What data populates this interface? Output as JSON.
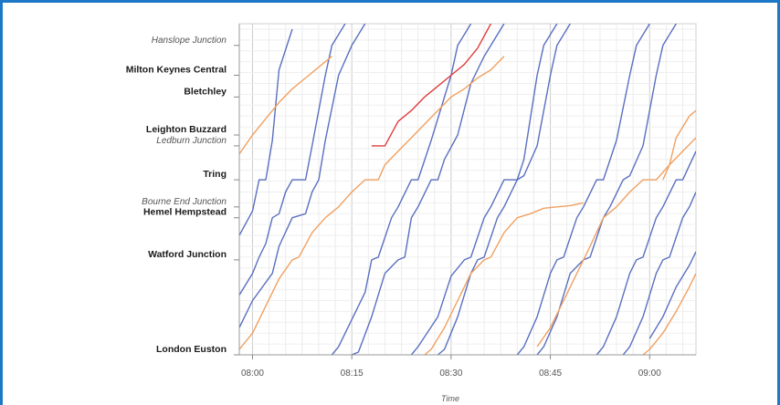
{
  "chart_data": {
    "type": "line",
    "title": "",
    "xlabel": "Time",
    "ylabel": "",
    "x_ticks": [
      "08:00",
      "08:15",
      "08:30",
      "08:45",
      "09:00"
    ],
    "xlim_minutes": [
      -2,
      67
    ],
    "stations": [
      {
        "name": "London Euston",
        "pos": 0,
        "style": "bold"
      },
      {
        "name": "Watford Junction",
        "pos": 0.35,
        "style": "bold"
      },
      {
        "name": "Hemel Hempstead",
        "pos": 0.505,
        "style": "bold"
      },
      {
        "name": "Bourne End Junction",
        "pos": 0.545,
        "style": "italic"
      },
      {
        "name": "Tring",
        "pos": 0.645,
        "style": "bold"
      },
      {
        "name": "Ledburn Junction",
        "pos": 0.77,
        "style": "italic"
      },
      {
        "name": "Leighton Buzzard",
        "pos": 0.81,
        "style": "bold"
      },
      {
        "name": "Bletchley",
        "pos": 0.95,
        "style": "bold"
      },
      {
        "name": "Milton Keynes Central",
        "pos": 1.03,
        "style": "bold"
      },
      {
        "name": "Hanslope Junction",
        "pos": 1.14,
        "style": "italic"
      }
    ],
    "series": [
      {
        "color": "#5a6fc0",
        "points": [
          [
            -2,
            0.44
          ],
          [
            0,
            0.53
          ],
          [
            1,
            0.645
          ],
          [
            2,
            0.645
          ],
          [
            3,
            0.79
          ],
          [
            4,
            1.05
          ],
          [
            6,
            1.2
          ]
        ]
      },
      {
        "color": "#5a6fc0",
        "points": [
          [
            -2,
            0.22
          ],
          [
            0,
            0.3
          ],
          [
            1,
            0.36
          ],
          [
            2,
            0.41
          ],
          [
            3,
            0.505
          ],
          [
            4,
            0.52
          ],
          [
            5,
            0.6
          ],
          [
            6,
            0.645
          ],
          [
            8,
            0.645
          ],
          [
            9,
            0.77
          ],
          [
            11,
            1.03
          ],
          [
            12,
            1.14
          ],
          [
            14,
            1.22
          ]
        ]
      },
      {
        "color": "#5a6fc0",
        "points": [
          [
            -2,
            0.1
          ],
          [
            0,
            0.2
          ],
          [
            3,
            0.3
          ],
          [
            4,
            0.4
          ],
          [
            6,
            0.505
          ],
          [
            8,
            0.52
          ],
          [
            9,
            0.6
          ],
          [
            10,
            0.645
          ],
          [
            11,
            0.79
          ],
          [
            13,
            1.03
          ],
          [
            15,
            1.14
          ],
          [
            17,
            1.22
          ]
        ]
      },
      {
        "color": "#5a6fc0",
        "points": [
          [
            12,
            0
          ],
          [
            13,
            0.03
          ],
          [
            15,
            0.13
          ],
          [
            17,
            0.23
          ],
          [
            18,
            0.35
          ],
          [
            19,
            0.36
          ],
          [
            21,
            0.505
          ],
          [
            22,
            0.545
          ],
          [
            24,
            0.645
          ],
          [
            25,
            0.645
          ],
          [
            27,
            0.79
          ],
          [
            30,
            1.03
          ],
          [
            31,
            1.14
          ],
          [
            33,
            1.22
          ]
        ]
      },
      {
        "color": "#5a6fc0",
        "points": [
          [
            15,
            0
          ],
          [
            16,
            0.01
          ],
          [
            18,
            0.14
          ],
          [
            20,
            0.3
          ],
          [
            22,
            0.35
          ],
          [
            23,
            0.36
          ],
          [
            24,
            0.505
          ],
          [
            25,
            0.545
          ],
          [
            27,
            0.645
          ],
          [
            28,
            0.645
          ],
          [
            29,
            0.72
          ],
          [
            31,
            0.81
          ],
          [
            33,
            1.0
          ],
          [
            35,
            1.1
          ],
          [
            36,
            1.14
          ],
          [
            38,
            1.22
          ]
        ]
      },
      {
        "color": "#5a6fc0",
        "points": [
          [
            24,
            0
          ],
          [
            25,
            0.03
          ],
          [
            28,
            0.14
          ],
          [
            30,
            0.29
          ],
          [
            32,
            0.35
          ],
          [
            33,
            0.36
          ],
          [
            35,
            0.505
          ],
          [
            36,
            0.545
          ],
          [
            38,
            0.645
          ],
          [
            40,
            0.645
          ],
          [
            41,
            0.72
          ],
          [
            43,
            1.03
          ],
          [
            44,
            1.14
          ],
          [
            46,
            1.22
          ]
        ]
      },
      {
        "color": "#5a6fc0",
        "points": [
          [
            28,
            0
          ],
          [
            29,
            0.02
          ],
          [
            31,
            0.14
          ],
          [
            33,
            0.3
          ],
          [
            34,
            0.35
          ],
          [
            35,
            0.36
          ],
          [
            37,
            0.505
          ],
          [
            38,
            0.545
          ],
          [
            40,
            0.645
          ],
          [
            41,
            0.66
          ],
          [
            43,
            0.77
          ],
          [
            45,
            1.03
          ],
          [
            46,
            1.14
          ],
          [
            48,
            1.22
          ]
        ]
      },
      {
        "color": "#5a6fc0",
        "points": [
          [
            40,
            0
          ],
          [
            41,
            0.03
          ],
          [
            43,
            0.14
          ],
          [
            45,
            0.3
          ],
          [
            46,
            0.35
          ],
          [
            47,
            0.36
          ],
          [
            49,
            0.505
          ],
          [
            50,
            0.545
          ],
          [
            52,
            0.645
          ],
          [
            53,
            0.645
          ],
          [
            55,
            0.79
          ],
          [
            57,
            1.03
          ],
          [
            58,
            1.14
          ],
          [
            60,
            1.22
          ]
        ]
      },
      {
        "color": "#5a6fc0",
        "points": [
          [
            43,
            0
          ],
          [
            44,
            0.03
          ],
          [
            46,
            0.14
          ],
          [
            48,
            0.3
          ],
          [
            50,
            0.35
          ],
          [
            51,
            0.36
          ],
          [
            53,
            0.505
          ],
          [
            54,
            0.545
          ],
          [
            56,
            0.645
          ],
          [
            57,
            0.66
          ],
          [
            59,
            0.77
          ],
          [
            61,
            1.03
          ],
          [
            62,
            1.14
          ],
          [
            64,
            1.22
          ]
        ]
      },
      {
        "color": "#5a6fc0",
        "points": [
          [
            52,
            0
          ],
          [
            53,
            0.03
          ],
          [
            55,
            0.14
          ],
          [
            57,
            0.3
          ],
          [
            58,
            0.35
          ],
          [
            59,
            0.36
          ],
          [
            61,
            0.505
          ],
          [
            62,
            0.545
          ],
          [
            64,
            0.645
          ],
          [
            65,
            0.645
          ],
          [
            67,
            0.75
          ]
        ]
      },
      {
        "color": "#5a6fc0",
        "points": [
          [
            56,
            0
          ],
          [
            57,
            0.03
          ],
          [
            59,
            0.14
          ],
          [
            61,
            0.3
          ],
          [
            62,
            0.35
          ],
          [
            63,
            0.36
          ],
          [
            65,
            0.505
          ],
          [
            66,
            0.545
          ],
          [
            67,
            0.6
          ]
        ]
      },
      {
        "color": "#5a6fc0",
        "points": [
          [
            60,
            0.06
          ],
          [
            62,
            0.14
          ],
          [
            64,
            0.25
          ],
          [
            66,
            0.33
          ],
          [
            67,
            0.38
          ]
        ]
      },
      {
        "color": "#f0a060",
        "points": [
          [
            -2,
            0.74
          ],
          [
            0,
            0.81
          ],
          [
            2,
            0.87
          ],
          [
            4,
            0.93
          ],
          [
            6,
            0.98
          ],
          [
            8,
            1.02
          ],
          [
            10,
            1.06
          ],
          [
            12,
            1.1
          ]
        ]
      },
      {
        "color": "#f0a060",
        "points": [
          [
            -2,
            0.02
          ],
          [
            0,
            0.08
          ],
          [
            2,
            0.18
          ],
          [
            4,
            0.28
          ],
          [
            6,
            0.35
          ],
          [
            7,
            0.36
          ],
          [
            9,
            0.45
          ],
          [
            11,
            0.505
          ],
          [
            13,
            0.545
          ],
          [
            15,
            0.6
          ],
          [
            17,
            0.645
          ],
          [
            19,
            0.645
          ],
          [
            20,
            0.7
          ],
          [
            22,
            0.75
          ],
          [
            24,
            0.8
          ],
          [
            26,
            0.85
          ],
          [
            28,
            0.9
          ],
          [
            30,
            0.95
          ],
          [
            32,
            0.98
          ],
          [
            34,
            1.02
          ],
          [
            36,
            1.05
          ],
          [
            38,
            1.1
          ]
        ]
      },
      {
        "color": "#f0a060",
        "points": [
          [
            26,
            0
          ],
          [
            27,
            0.02
          ],
          [
            29,
            0.1
          ],
          [
            31,
            0.2
          ],
          [
            33,
            0.3
          ],
          [
            35,
            0.35
          ],
          [
            36,
            0.36
          ],
          [
            38,
            0.45
          ],
          [
            40,
            0.505
          ],
          [
            42,
            0.52
          ],
          [
            44,
            0.54
          ],
          [
            46,
            0.545
          ],
          [
            48,
            0.55
          ],
          [
            50,
            0.56
          ]
        ]
      },
      {
        "color": "#f0a060",
        "points": [
          [
            43,
            0.03
          ],
          [
            45,
            0.1
          ],
          [
            47,
            0.2
          ],
          [
            49,
            0.3
          ],
          [
            51,
            0.4
          ],
          [
            53,
            0.505
          ],
          [
            55,
            0.545
          ],
          [
            57,
            0.6
          ],
          [
            59,
            0.645
          ],
          [
            61,
            0.645
          ],
          [
            63,
            0.7
          ],
          [
            65,
            0.75
          ],
          [
            67,
            0.8
          ]
        ]
      },
      {
        "color": "#f0a060",
        "points": [
          [
            59,
            0
          ],
          [
            60,
            0.02
          ],
          [
            62,
            0.08
          ],
          [
            64,
            0.16
          ],
          [
            66,
            0.25
          ],
          [
            67,
            0.3
          ]
        ]
      },
      {
        "color": "#f0a060",
        "points": [
          [
            62,
            0.645
          ],
          [
            63,
            0.7
          ],
          [
            64,
            0.8
          ],
          [
            66,
            0.88
          ],
          [
            67,
            0.9
          ]
        ]
      },
      {
        "color": "#e03c3c",
        "points": [
          [
            18,
            0.77
          ],
          [
            20,
            0.77
          ],
          [
            22,
            0.86
          ],
          [
            24,
            0.9
          ],
          [
            26,
            0.95
          ],
          [
            28,
            0.99
          ],
          [
            30,
            1.03
          ],
          [
            32,
            1.07
          ],
          [
            34,
            1.13
          ],
          [
            36,
            1.22
          ]
        ]
      }
    ]
  }
}
